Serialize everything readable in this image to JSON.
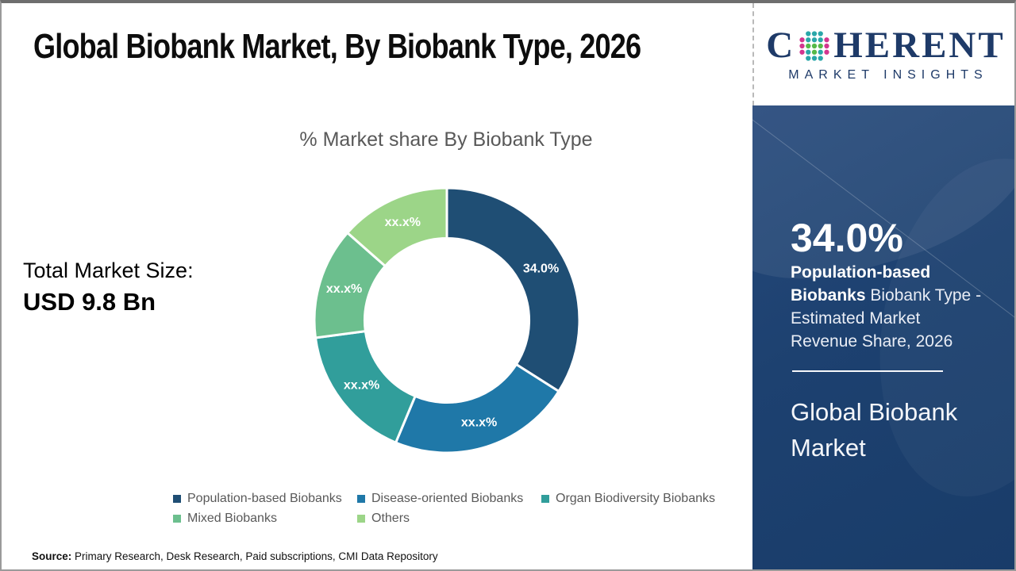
{
  "header": {
    "title": "Global Biobank Market, By Biobank Type, 2026"
  },
  "logo": {
    "prefix": "C",
    "suffix": "HERENT",
    "subtitle": "MARKET INSIGHTS",
    "text_color": "#1E3A68",
    "dot_colors": {
      "teal": "#2AA7A9",
      "green": "#56B948",
      "pink": "#D3368F"
    }
  },
  "market_size": {
    "label": "Total Market Size:",
    "value": "USD 9.8 Bn"
  },
  "chart_data": {
    "type": "pie",
    "subtype": "donut",
    "title": "% Market share By Biobank Type",
    "categories": [
      "Population-based Biobanks",
      "Disease-oriented Biobanks",
      "Organ Biodiversity Biobanks",
      "Mixed Biobanks",
      "Others"
    ],
    "values": [
      34.0,
      22.3,
      16.6,
      13.6,
      13.5
    ],
    "labels": [
      "34.0%",
      "xx.x%",
      "xx.x%",
      "xx.x%",
      "xx.x%"
    ],
    "colors": [
      "#1F4E74",
      "#1F78A8",
      "#319E9B",
      "#6CBF8E",
      "#9CD588"
    ],
    "inner_radius_ratio": 0.62,
    "start_angle_deg": 0,
    "direction": "clockwise",
    "legend_position": "bottom",
    "legend_rows": [
      [
        0,
        1,
        2
      ],
      [
        3,
        4
      ]
    ]
  },
  "sidebar": {
    "bg_color": "#1D4170",
    "stat_value": "34.0%",
    "stat_category": "Population-based Biobanks",
    "stat_description": " Biobank Type - Estimated Market Revenue Share, 2026",
    "footer_title": "Global Biobank Market"
  },
  "footer": {
    "source_label": "Source:",
    "source_text": " Primary Research, Desk Research, Paid subscriptions, CMI Data Repository"
  }
}
